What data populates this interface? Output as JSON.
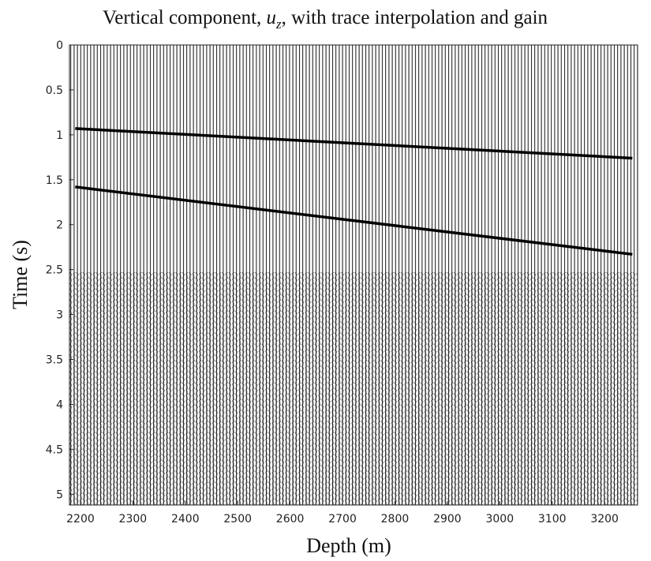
{
  "chart_data": {
    "type": "wiggle",
    "title": [
      "Vertical component, ",
      "u",
      "z",
      ", with trace interpolation and gain"
    ],
    "x_label": "Depth (m)",
    "y_label": "Time (s)",
    "xlim": [
      2179,
      3263
    ],
    "ylim": [
      0,
      5.12
    ],
    "y_reversed": true,
    "xticks": [
      2200,
      2300,
      2400,
      2500,
      2600,
      2700,
      2800,
      2900,
      3000,
      3100,
      3200
    ],
    "yticks": [
      0,
      0.5,
      1,
      1.5,
      2,
      2.5,
      3,
      3.5,
      4,
      4.5,
      5
    ],
    "series": [
      {
        "color": "#000000",
        "x": [
          2190,
          3253
        ],
        "values": [
          0.93,
          1.26
        ]
      },
      {
        "color": "#000000",
        "x": [
          2190,
          3253
        ],
        "values": [
          1.58,
          2.33
        ]
      }
    ]
  }
}
